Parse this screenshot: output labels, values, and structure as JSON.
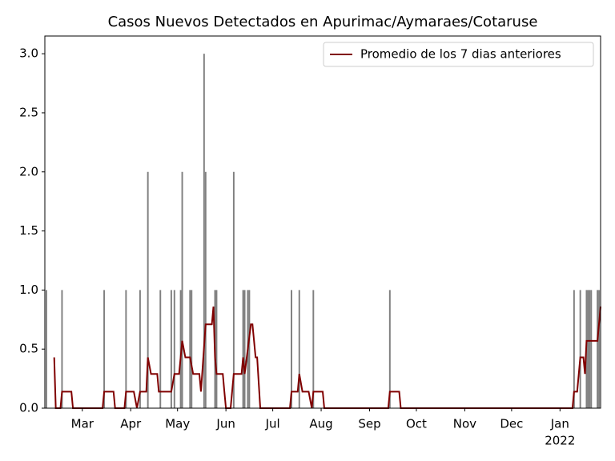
{
  "chart_data": {
    "type": "bar",
    "title": "Casos Nuevos Detectados en Apurimac/Aymaraes/Cotaruse",
    "bars": {
      "color": "#808080",
      "x": [
        1,
        11,
        38,
        52,
        61,
        66,
        74,
        81,
        83,
        87,
        88,
        93,
        94,
        102,
        103,
        109,
        110,
        121,
        127,
        128,
        130,
        131,
        158,
        163,
        172,
        221,
        339,
        343,
        347,
        348,
        349,
        350,
        354,
        355
      ],
      "values": [
        1,
        1,
        1,
        1,
        1,
        2,
        1,
        1,
        1,
        1,
        2,
        1,
        1,
        3,
        2,
        1,
        1,
        2,
        1,
        1,
        1,
        1,
        1,
        1,
        1,
        1,
        1,
        1,
        1,
        1,
        1,
        1,
        1,
        1
      ]
    },
    "series": [
      {
        "name": "Promedio de los 7 dias anteriores",
        "color": "#800000",
        "x": [
          6,
          7,
          10,
          11,
          17,
          18,
          37,
          38,
          44,
          45,
          51,
          52,
          57,
          59,
          61,
          65,
          66,
          68,
          72,
          73,
          81,
          83,
          86,
          88,
          90,
          93,
          95,
          99,
          100,
          103,
          107,
          108,
          109,
          110,
          114,
          115,
          116,
          119,
          121,
          126,
          127,
          128,
          132,
          133,
          135,
          136,
          138,
          157,
          158,
          162,
          163,
          165,
          169,
          171,
          172,
          178,
          179,
          220,
          221,
          227,
          228,
          338,
          339,
          341,
          343,
          345,
          346,
          347,
          354,
          356
        ],
        "values": [
          0.43,
          0,
          0,
          0.14,
          0.14,
          0,
          0,
          0.14,
          0.14,
          0,
          0,
          0.14,
          0.14,
          0,
          0.14,
          0.14,
          0.43,
          0.29,
          0.29,
          0.14,
          0.14,
          0.29,
          0.29,
          0.57,
          0.43,
          0.43,
          0.29,
          0.29,
          0.14,
          0.71,
          0.71,
          0.86,
          0.43,
          0.29,
          0.29,
          0.14,
          0,
          0,
          0.29,
          0.29,
          0.43,
          0.29,
          0.71,
          0.71,
          0.43,
          0.43,
          0,
          0,
          0.14,
          0.14,
          0.29,
          0.14,
          0.14,
          0,
          0.14,
          0.14,
          0,
          0,
          0.14,
          0.14,
          0,
          0,
          0.14,
          0.14,
          0.43,
          0.43,
          0.29,
          0.57,
          0.57,
          0.86
        ]
      }
    ],
    "xlim": [
      0,
      356
    ],
    "xticks": [
      {
        "value": 24,
        "label": "Mar"
      },
      {
        "value": 55,
        "label": "Apr"
      },
      {
        "value": 85,
        "label": "May"
      },
      {
        "value": 116,
        "label": "Jun"
      },
      {
        "value": 146,
        "label": "Jul"
      },
      {
        "value": 177,
        "label": "Aug"
      },
      {
        "value": 208,
        "label": "Sep"
      },
      {
        "value": 238,
        "label": "Oct"
      },
      {
        "value": 269,
        "label": "Nov"
      },
      {
        "value": 299,
        "label": "Dec"
      },
      {
        "value": 330,
        "label": "Jan"
      }
    ],
    "x_year_label": "2022",
    "ylim": [
      0,
      3.15
    ],
    "yticks": [
      {
        "value": 0,
        "label": "0.0"
      },
      {
        "value": 0.5,
        "label": "0.5"
      },
      {
        "value": 1,
        "label": "1.0"
      },
      {
        "value": 1.5,
        "label": "1.5"
      },
      {
        "value": 2,
        "label": "2.0"
      },
      {
        "value": 2.5,
        "label": "2.5"
      },
      {
        "value": 3,
        "label": "3.0"
      }
    ],
    "legend": "upper right"
  }
}
